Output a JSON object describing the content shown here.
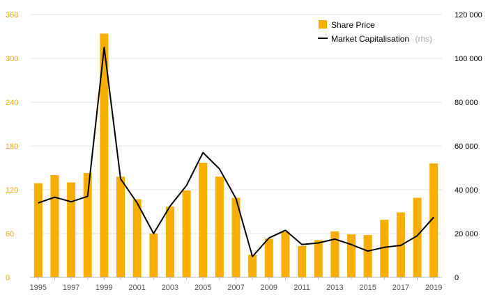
{
  "chart_data": {
    "type": "bar",
    "x": [
      1995,
      1996,
      1997,
      1998,
      1999,
      2000,
      2001,
      2002,
      2003,
      2004,
      2005,
      2006,
      2007,
      2008,
      2009,
      2010,
      2011,
      2012,
      2013,
      2014,
      2015,
      2016,
      2017,
      2018,
      2019
    ],
    "x_tick_labels": [
      "1995",
      "1997",
      "1999",
      "2001",
      "2003",
      "2005",
      "2007",
      "2009",
      "2011",
      "2013",
      "2015",
      "2017",
      "2019"
    ],
    "y_left": {
      "ticks": [
        "0",
        "60",
        "120",
        "180",
        "240",
        "300",
        "360"
      ],
      "ylim": [
        0,
        360
      ]
    },
    "y_right": {
      "ticks": [
        "0",
        "20 000",
        "40 000",
        "60 000",
        "80 000",
        "100 000",
        "120 000"
      ],
      "ylim": [
        0,
        120000
      ]
    },
    "series": [
      {
        "name": "Share Price",
        "kind": "bar",
        "axis": "left",
        "color": "#f7ae00",
        "values": [
          129,
          140,
          130,
          143,
          334,
          138,
          107,
          60,
          97,
          119,
          157,
          138,
          109,
          31,
          53,
          62,
          43,
          51,
          63,
          59,
          58,
          79,
          89,
          109,
          156
        ]
      },
      {
        "name": "Market Capitalisation",
        "unit": "(rhs)",
        "kind": "line",
        "axis": "right",
        "color": "#000000",
        "values": [
          34000,
          36600,
          34500,
          37000,
          105000,
          45000,
          34000,
          20000,
          32500,
          42000,
          57000,
          49500,
          36000,
          9500,
          18000,
          21500,
          15000,
          15700,
          17500,
          15000,
          12000,
          13700,
          14600,
          19000,
          27500
        ]
      }
    ],
    "grid": true,
    "legend": "top-right"
  }
}
